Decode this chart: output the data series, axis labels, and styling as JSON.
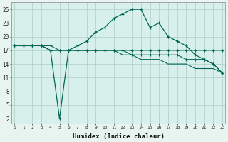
{
  "xlabel": "Humidex (Indice chaleur)",
  "background_color": "#d8f0ec",
  "grid_color": "#b0ccc8",
  "line_color": "#006655",
  "x_hours": [
    0,
    1,
    2,
    3,
    4,
    5,
    6,
    7,
    8,
    9,
    10,
    11,
    12,
    13,
    14,
    15,
    16,
    17,
    18,
    19,
    20,
    21,
    22,
    23
  ],
  "curve_main": [
    18,
    18,
    18,
    18,
    17,
    2,
    17,
    18,
    19,
    21,
    22,
    24,
    25,
    26,
    26,
    22,
    23,
    20,
    19,
    18,
    16,
    15,
    14,
    12
  ],
  "curve_flat": [
    18,
    18,
    18,
    18,
    18,
    17,
    17,
    17,
    17,
    17,
    17,
    17,
    17,
    17,
    17,
    17,
    17,
    17,
    17,
    17,
    17,
    17,
    17,
    17
  ],
  "curve_diag1": [
    18,
    18,
    18,
    18,
    17,
    17,
    17,
    17,
    17,
    17,
    17,
    17,
    17,
    16,
    16,
    16,
    16,
    16,
    16,
    15,
    15,
    15,
    14,
    12
  ],
  "curve_diag2": [
    18,
    18,
    18,
    18,
    17,
    17,
    17,
    17,
    17,
    17,
    17,
    17,
    16,
    16,
    15,
    15,
    15,
    14,
    14,
    14,
    13,
    13,
    13,
    12
  ],
  "yticks": [
    2,
    5,
    8,
    11,
    14,
    17,
    20,
    23,
    26
  ],
  "ylim": [
    1,
    27.5
  ],
  "xlim": [
    -0.3,
    23.3
  ]
}
